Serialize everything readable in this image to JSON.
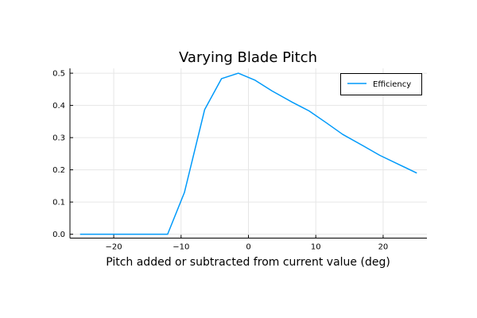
{
  "chart_data": {
    "type": "line",
    "title": "Varying Blade Pitch",
    "xlabel": "Pitch added or subtracted from current value (deg)",
    "ylabel": "",
    "xlim": [
      -26.5,
      26.5
    ],
    "ylim": [
      -0.012,
      0.515
    ],
    "grid": true,
    "legend_position": "top-right",
    "x_ticks": [
      -20,
      -10,
      0,
      10,
      20
    ],
    "x_tick_labels": [
      "−20",
      "−10",
      "0",
      "10",
      "20"
    ],
    "y_ticks": [
      0.0,
      0.1,
      0.2,
      0.3,
      0.4,
      0.5
    ],
    "y_tick_labels": [
      "0.0",
      "0.1",
      "0.2",
      "0.3",
      "0.4",
      "0.5"
    ],
    "series": [
      {
        "name": "Efficiency",
        "color": "#009AFA",
        "x": [
          -25,
          -22.5,
          -20,
          -17.5,
          -15,
          -12,
          -9.5,
          -6.5,
          -4,
          -1.5,
          1,
          3.5,
          6.5,
          9,
          11.5,
          14,
          17,
          19.5,
          22.5,
          25
        ],
        "y": [
          0.0,
          0.0,
          0.0,
          0.0,
          0.0,
          0.0,
          0.13,
          0.387,
          0.483,
          0.5,
          0.478,
          0.445,
          0.41,
          0.383,
          0.347,
          0.31,
          0.275,
          0.245,
          0.215,
          0.19
        ]
      }
    ]
  }
}
